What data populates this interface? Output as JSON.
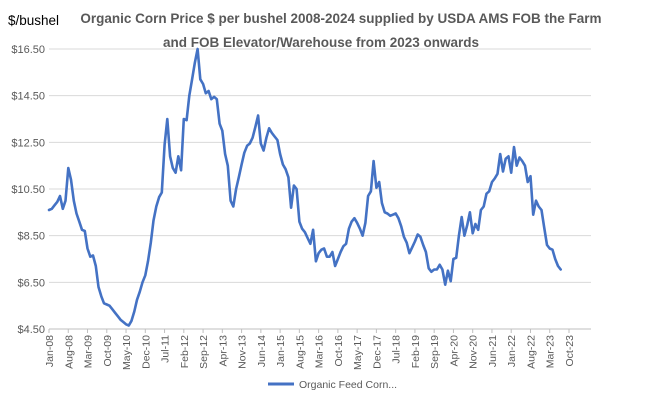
{
  "chart_data": {
    "type": "line",
    "title_line1": "Organic Corn Price $  per bushel 2008-2024  supplied by USDA AMS  FOB the Farm",
    "title_line2": "and  FOB Elevator/Warehouse from 2023  onwards",
    "ylabel": "$/bushel",
    "ylim": [
      4.5,
      16.5
    ],
    "yticks": [
      4.5,
      6.5,
      8.5,
      10.5,
      12.5,
      14.5,
      16.5
    ],
    "ytick_labels": [
      "$4.50",
      "$6.50",
      "$8.50",
      "$10.50",
      "$12.50",
      "$14.50",
      "$16.50"
    ],
    "xlim": [
      0,
      197
    ],
    "xtick_labels": [
      "Jan-08",
      "Aug-08",
      "Mar-09",
      "Oct-09",
      "May-10",
      "Dec-10",
      "Jul-11",
      "Feb-12",
      "Sep-12",
      "Apr-13",
      "Nov-13",
      "Jun-14",
      "Jan-15",
      "Aug-15",
      "Mar-16",
      "Oct-16",
      "May-17",
      "Dec-17",
      "Jul-18",
      "Feb-19",
      "Sep-19",
      "Apr-20",
      "Nov-20",
      "Jun-21",
      "Jan-22",
      "Aug-22",
      "Mar-23",
      "Oct-23"
    ],
    "xtick_step_months": 7,
    "grid": true,
    "legend_position": "bottom",
    "line_color": "#4472C4",
    "series": [
      {
        "name": "Organic Feed Corn...",
        "points": [
          [
            0,
            9.6
          ],
          [
            1,
            9.65
          ],
          [
            2,
            9.8
          ],
          [
            3,
            9.95
          ],
          [
            4,
            10.2
          ],
          [
            5,
            9.65
          ],
          [
            6,
            10.0
          ],
          [
            7,
            11.4
          ],
          [
            8,
            10.9
          ],
          [
            9,
            10.0
          ],
          [
            10,
            9.45
          ],
          [
            11,
            9.1
          ],
          [
            12,
            8.75
          ],
          [
            13,
            8.7
          ],
          [
            14,
            7.95
          ],
          [
            15,
            7.6
          ],
          [
            16,
            7.65
          ],
          [
            17,
            7.2
          ],
          [
            18,
            6.3
          ],
          [
            19,
            5.9
          ],
          [
            20,
            5.6
          ],
          [
            21,
            5.55
          ],
          [
            22,
            5.5
          ],
          [
            23,
            5.35
          ],
          [
            24,
            5.2
          ],
          [
            25,
            5.05
          ],
          [
            26,
            4.9
          ],
          [
            27,
            4.8
          ],
          [
            28,
            4.7
          ],
          [
            29,
            4.65
          ],
          [
            30,
            4.85
          ],
          [
            31,
            5.25
          ],
          [
            32,
            5.75
          ],
          [
            33,
            6.1
          ],
          [
            34,
            6.5
          ],
          [
            35,
            6.8
          ],
          [
            36,
            7.4
          ],
          [
            37,
            8.2
          ],
          [
            38,
            9.15
          ],
          [
            39,
            9.75
          ],
          [
            40,
            10.15
          ],
          [
            41,
            10.35
          ],
          [
            42,
            12.4
          ],
          [
            43,
            13.5
          ],
          [
            44,
            11.9
          ],
          [
            45,
            11.4
          ],
          [
            46,
            11.2
          ],
          [
            47,
            11.9
          ],
          [
            48,
            11.3
          ],
          [
            49,
            13.5
          ],
          [
            50,
            13.45
          ],
          [
            51,
            14.5
          ],
          [
            52,
            15.2
          ],
          [
            53,
            15.9
          ],
          [
            54,
            16.5
          ],
          [
            55,
            15.2
          ],
          [
            56,
            15.0
          ],
          [
            57,
            14.6
          ],
          [
            58,
            14.7
          ],
          [
            59,
            14.35
          ],
          [
            60,
            14.45
          ],
          [
            61,
            14.35
          ],
          [
            62,
            13.3
          ],
          [
            63,
            13.0
          ],
          [
            64,
            12.0
          ],
          [
            65,
            11.5
          ],
          [
            66,
            10.0
          ],
          [
            67,
            9.75
          ],
          [
            68,
            10.5
          ],
          [
            69,
            11.0
          ],
          [
            70,
            11.55
          ],
          [
            71,
            12.05
          ],
          [
            72,
            12.35
          ],
          [
            73,
            12.45
          ],
          [
            74,
            12.7
          ],
          [
            75,
            13.15
          ],
          [
            76,
            13.65
          ],
          [
            77,
            12.45
          ],
          [
            78,
            12.15
          ],
          [
            79,
            12.7
          ],
          [
            80,
            13.1
          ],
          [
            81,
            12.9
          ],
          [
            82,
            12.75
          ],
          [
            83,
            12.6
          ],
          [
            84,
            12.0
          ],
          [
            85,
            11.55
          ],
          [
            86,
            11.35
          ],
          [
            87,
            11.0
          ],
          [
            88,
            9.7
          ],
          [
            89,
            10.65
          ],
          [
            90,
            10.5
          ],
          [
            91,
            9.1
          ],
          [
            92,
            8.8
          ],
          [
            93,
            8.65
          ],
          [
            94,
            8.4
          ],
          [
            95,
            8.15
          ],
          [
            96,
            8.75
          ],
          [
            97,
            7.4
          ],
          [
            98,
            7.75
          ],
          [
            99,
            7.9
          ],
          [
            100,
            7.95
          ],
          [
            101,
            7.6
          ],
          [
            102,
            7.6
          ],
          [
            103,
            7.8
          ],
          [
            104,
            7.2
          ],
          [
            105,
            7.5
          ],
          [
            106,
            7.8
          ],
          [
            107,
            8.05
          ],
          [
            108,
            8.15
          ],
          [
            109,
            8.8
          ],
          [
            110,
            9.1
          ],
          [
            111,
            9.25
          ],
          [
            112,
            9.05
          ],
          [
            113,
            8.8
          ],
          [
            114,
            8.5
          ],
          [
            115,
            9.05
          ],
          [
            116,
            10.2
          ],
          [
            117,
            10.4
          ],
          [
            118,
            11.7
          ],
          [
            119,
            10.55
          ],
          [
            120,
            10.8
          ],
          [
            121,
            9.9
          ],
          [
            122,
            9.5
          ],
          [
            123,
            9.45
          ],
          [
            124,
            9.35
          ],
          [
            125,
            9.4
          ],
          [
            126,
            9.45
          ],
          [
            127,
            9.25
          ],
          [
            128,
            8.9
          ],
          [
            129,
            8.45
          ],
          [
            130,
            8.2
          ],
          [
            131,
            7.75
          ],
          [
            132,
            8.0
          ],
          [
            133,
            8.25
          ],
          [
            134,
            8.55
          ],
          [
            135,
            8.45
          ],
          [
            136,
            8.1
          ],
          [
            137,
            7.8
          ],
          [
            138,
            7.1
          ],
          [
            139,
            6.95
          ],
          [
            140,
            7.05
          ],
          [
            141,
            7.05
          ],
          [
            142,
            7.25
          ],
          [
            143,
            7.05
          ],
          [
            144,
            6.4
          ],
          [
            145,
            7.0
          ],
          [
            146,
            6.55
          ],
          [
            147,
            7.5
          ],
          [
            148,
            7.55
          ],
          [
            149,
            8.5
          ],
          [
            150,
            9.3
          ],
          [
            151,
            8.5
          ],
          [
            152,
            8.95
          ],
          [
            153,
            9.5
          ],
          [
            154,
            8.6
          ],
          [
            155,
            9.0
          ],
          [
            156,
            8.75
          ],
          [
            157,
            9.6
          ],
          [
            158,
            9.75
          ],
          [
            159,
            10.3
          ],
          [
            160,
            10.4
          ],
          [
            161,
            10.8
          ],
          [
            162,
            10.95
          ],
          [
            163,
            11.15
          ],
          [
            164,
            12.0
          ],
          [
            165,
            11.25
          ],
          [
            166,
            11.8
          ],
          [
            167,
            11.9
          ],
          [
            168,
            11.2
          ],
          [
            169,
            12.3
          ],
          [
            170,
            11.5
          ],
          [
            171,
            11.85
          ],
          [
            172,
            11.7
          ],
          [
            173,
            11.5
          ],
          [
            174,
            10.8
          ],
          [
            175,
            11.05
          ],
          [
            176,
            9.4
          ],
          [
            177,
            10.0
          ],
          [
            178,
            9.75
          ],
          [
            179,
            9.6
          ],
          [
            180,
            8.85
          ],
          [
            181,
            8.1
          ],
          [
            182,
            7.95
          ],
          [
            183,
            7.9
          ],
          [
            184,
            7.5
          ],
          [
            185,
            7.2
          ],
          [
            186,
            7.05
          ]
        ]
      }
    ]
  }
}
